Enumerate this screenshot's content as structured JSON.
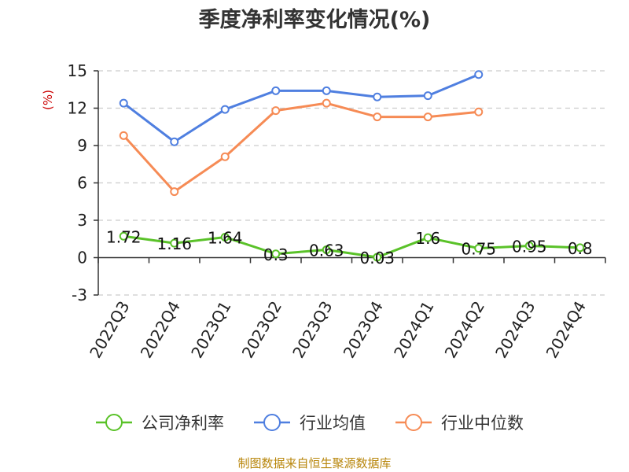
{
  "colors": {
    "company": "#5ac229",
    "industry_avg": "#4f7fe0",
    "industry_median": "#f68b55",
    "grid": "#cccccc",
    "axis": "#333333"
  },
  "source": "制图数据来自恒生聚源数据库",
  "chart_data": {
    "type": "line",
    "title": "季度净利率变化情况(%)",
    "ylabel": "(%)",
    "xlabel": "",
    "ylim": [
      -3,
      15
    ],
    "yticks": [
      -3,
      0,
      3,
      6,
      9,
      12,
      15
    ],
    "grid": true,
    "legend_position": "bottom",
    "categories": [
      "2022Q3",
      "2022Q4",
      "2023Q1",
      "2023Q2",
      "2023Q3",
      "2023Q4",
      "2024Q1",
      "2024Q2",
      "2024Q3",
      "2024Q4"
    ],
    "series": [
      {
        "name": "公司净利率",
        "color": "#5ac229",
        "values": [
          1.72,
          1.16,
          1.64,
          0.3,
          0.63,
          0.03,
          1.6,
          0.75,
          0.95,
          0.8
        ],
        "labels": [
          "1.72",
          "1.16",
          "1.64",
          "0.3",
          "0.63",
          "0.03",
          "1.6",
          "0.75",
          "0.95",
          "0.8"
        ]
      },
      {
        "name": "行业均值",
        "color": "#4f7fe0",
        "values": [
          12.4,
          9.3,
          11.9,
          13.4,
          13.4,
          12.9,
          13.0,
          14.7,
          null,
          null
        ]
      },
      {
        "name": "行业中位数",
        "color": "#f68b55",
        "values": [
          9.8,
          5.3,
          8.1,
          11.8,
          12.4,
          11.3,
          11.3,
          11.7,
          null,
          null
        ]
      }
    ]
  }
}
